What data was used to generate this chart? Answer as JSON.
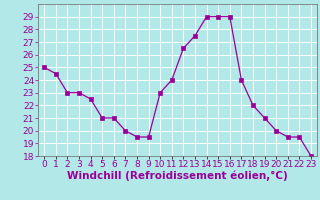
{
  "hours": [
    0,
    1,
    2,
    3,
    4,
    5,
    6,
    7,
    8,
    9,
    10,
    11,
    12,
    13,
    14,
    15,
    16,
    17,
    18,
    19,
    20,
    21,
    22,
    23
  ],
  "values": [
    25.0,
    24.5,
    23.0,
    23.0,
    22.5,
    21.0,
    21.0,
    20.0,
    19.5,
    19.5,
    23.0,
    24.0,
    26.5,
    27.5,
    29.0,
    29.0,
    29.0,
    24.0,
    22.0,
    21.0,
    20.0,
    19.5,
    19.5,
    18.0
  ],
  "line_color": "#990099",
  "marker_color": "#990099",
  "bg_color": "#b3e8e8",
  "plot_bg_color": "#b3e8e8",
  "grid_color": "#ffffff",
  "xlabel": "Windchill (Refroidissement éolien,°C)",
  "xlabel_color": "#990099",
  "tick_label_color": "#990099",
  "xlim": [
    -0.5,
    23.5
  ],
  "ylim": [
    18,
    30
  ],
  "yticks": [
    18,
    19,
    20,
    21,
    22,
    23,
    24,
    25,
    26,
    27,
    28,
    29
  ],
  "tick_fontsize": 6.5,
  "xlabel_fontsize": 7.5
}
